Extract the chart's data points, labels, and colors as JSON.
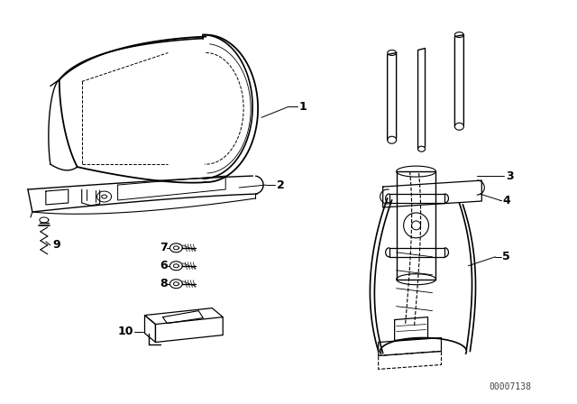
{
  "background_color": "#ffffff",
  "line_color": "#000000",
  "figure_width": 6.4,
  "figure_height": 4.48,
  "dpi": 100,
  "watermark": "00007138"
}
